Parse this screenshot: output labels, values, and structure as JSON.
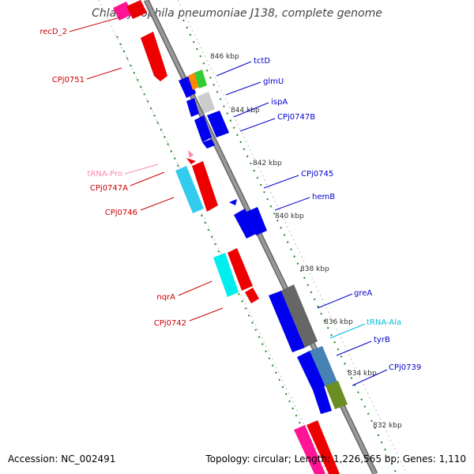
{
  "title": "Chlamydophila pneumoniae J138, complete genome",
  "footer": {
    "accession": "Accession: NC_002491",
    "summary": "Topology: circular; Length: 1,226,565 bp; Genes: 1,110"
  },
  "colors": {
    "backbone": "#888888",
    "tick_inner": "#228822",
    "tick_outer": "#006600",
    "ruler": "#bbbbbb",
    "label_red": "#cc0000",
    "label_blue": "#0000cc",
    "label_pink": "#ff88aa",
    "label_cyan": "#00bbdd"
  },
  "kbp_ticks": [
    "846 kbp",
    "844 kbp",
    "842 kbp",
    "840 kbp",
    "838 kbp",
    "836 kbp",
    "834 kbp",
    "832 kbp"
  ],
  "gene_labels": {
    "recD_2": "recD_2",
    "CPj0751": "CPj0751",
    "tRNA-Pro": "tRNA-Pro",
    "CPj0747A": "CPj0747A",
    "CPj0746": "CPj0746",
    "nqrA": "nqrA",
    "CPj0742": "CPj0742",
    "tctD": "tctD",
    "glmU": "glmU",
    "ispA": "ispA",
    "CPj0747B": "CPj0747B",
    "CPj0745": "CPj0745",
    "hemB": "hemB",
    "greA": "greA",
    "tRNA-Ala": "tRNA-Ala",
    "tyrB": "tyrB",
    "CPj0739": "CPj0739"
  }
}
